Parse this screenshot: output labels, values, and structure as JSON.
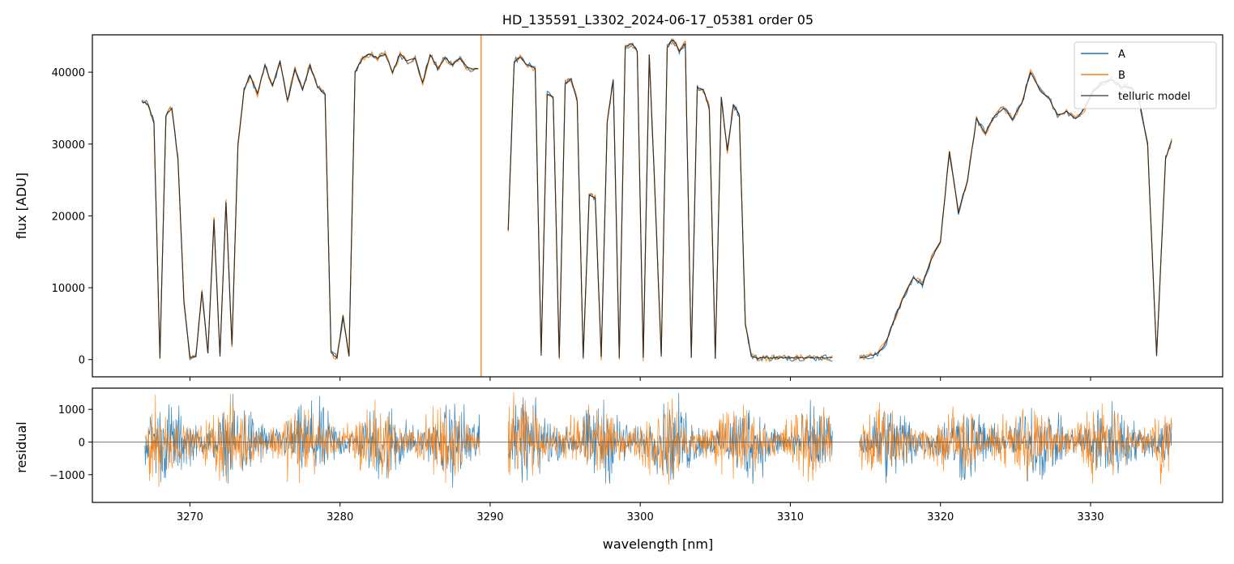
{
  "figure": {
    "title": "HD_135591_L3302_2024-06-17_05381  order 05"
  },
  "chart_data": [
    {
      "type": "line",
      "panel": "top",
      "xlabel": "",
      "ylabel": "flux [ADU]",
      "xlim": [
        3263.5,
        3338.8
      ],
      "ylim": [
        -2400,
        45200
      ],
      "yticks": [
        0,
        10000,
        20000,
        30000,
        40000
      ],
      "xticks": [
        3270,
        3280,
        3290,
        3300,
        3310,
        3320,
        3330
      ],
      "grid": false,
      "legend_position": "top-right",
      "legend": [
        "A",
        "B",
        "telluric model"
      ],
      "colors": {
        "A": "#1f77b4",
        "B": "#ff7f0e",
        "telluric model": "#000000"
      },
      "segments": [
        {
          "x": [
            3266.8,
            3267.2,
            3267.6,
            3268.0,
            3268.4,
            3268.8,
            3269.2,
            3269.6,
            3270.0,
            3270.4,
            3270.8,
            3271.2,
            3271.6,
            3272.0,
            3272.4,
            3272.8,
            3273.2,
            3273.6,
            3274.0,
            3274.5,
            3275.0,
            3275.5,
            3276.0,
            3276.5,
            3277.0,
            3277.5,
            3278.0,
            3278.5,
            3279.0,
            3279.4,
            3279.8,
            3280.2,
            3280.6,
            3281.0,
            3281.5,
            3282.0,
            3282.5,
            3283.0,
            3283.5,
            3284.0,
            3284.5,
            3285.0,
            3285.5,
            3286.0,
            3286.5,
            3287.0,
            3287.5,
            3288.0,
            3288.5,
            3289.2
          ],
          "y": [
            36000,
            35500,
            33000,
            200,
            34000,
            35000,
            28000,
            8000,
            300,
            400,
            9500,
            800,
            19500,
            500,
            22000,
            2000,
            30000,
            37500,
            39500,
            37000,
            41000,
            38000,
            41500,
            36000,
            40500,
            37500,
            41000,
            38000,
            37000,
            1000,
            200,
            6000,
            400,
            40000,
            42000,
            42500,
            42000,
            42500,
            40000,
            42500,
            41500,
            42000,
            38500,
            42500,
            40500,
            42000,
            41000,
            42000,
            40500,
            40500
          ]
        },
        {
          "x": [
            3291.2,
            3291.6,
            3292.0,
            3292.5,
            3293.0,
            3293.4,
            3293.8,
            3294.2,
            3294.6,
            3295.0,
            3295.4,
            3295.8,
            3296.2,
            3296.6,
            3297.0,
            3297.4,
            3297.8,
            3298.2,
            3298.6,
            3299.0,
            3299.4,
            3299.8,
            3300.2,
            3300.6,
            3301.0,
            3301.4,
            3301.8,
            3302.2,
            3302.6,
            3303.0,
            3303.4,
            3303.8,
            3304.2,
            3304.6,
            3305.0,
            3305.4,
            3305.8,
            3306.2,
            3306.6,
            3307.0,
            3307.4,
            3307.8,
            3308.2,
            3308.6,
            3309.0,
            3309.4,
            3309.8,
            3310.2,
            3310.6,
            3311.0,
            3311.4,
            3311.8,
            3312.2,
            3312.8
          ],
          "y": [
            18000,
            41500,
            42000,
            41000,
            40500,
            500,
            37000,
            36500,
            300,
            38500,
            39000,
            36000,
            200,
            23000,
            22500,
            300,
            33000,
            39000,
            300,
            43500,
            44000,
            43000,
            200,
            42500,
            22000,
            400,
            43500,
            44500,
            43000,
            44000,
            300,
            38000,
            37500,
            35000,
            200,
            36500,
            29000,
            35500,
            34000,
            5000,
            500,
            200,
            300,
            200,
            300,
            200,
            300,
            200,
            300,
            200,
            300,
            200,
            300,
            200
          ]
        },
        {
          "x": [
            3314.6,
            3315.2,
            3315.8,
            3316.4,
            3317.0,
            3317.6,
            3318.2,
            3318.8,
            3319.4,
            3320.0,
            3320.6,
            3321.2,
            3321.8,
            3322.4,
            3323.0,
            3323.6,
            3324.2,
            3324.8,
            3325.4,
            3326.0,
            3326.6,
            3327.2,
            3327.8,
            3328.4,
            3329.0,
            3329.6,
            3330.2,
            3330.8,
            3331.4,
            3332.0,
            3332.6,
            3333.2,
            3333.8,
            3334.4,
            3335.0,
            3335.4
          ],
          "y": [
            300,
            500,
            800,
            2500,
            6000,
            9000,
            11500,
            10500,
            14000,
            16500,
            29000,
            20500,
            25000,
            33500,
            31500,
            34000,
            35000,
            33500,
            35500,
            40000,
            37500,
            36500,
            34000,
            34500,
            33500,
            35000,
            37500,
            38500,
            39000,
            38000,
            38000,
            36500,
            30000,
            500,
            28000,
            30500
          ]
        }
      ]
    },
    {
      "type": "line",
      "panel": "bottom",
      "xlabel": "wavelength [nm]",
      "ylabel": "residual",
      "xlim": [
        3263.5,
        3338.8
      ],
      "ylim": [
        -1850,
        1650
      ],
      "yticks": [
        -1000,
        0,
        1000
      ],
      "xticks": [
        3270,
        3280,
        3290,
        3300,
        3310,
        3320,
        3330
      ],
      "zero_line": 0,
      "grid": false,
      "segments": [
        {
          "x0": 3267.0,
          "x1": 3289.3
        },
        {
          "x0": 3291.2,
          "x1": 3312.8
        },
        {
          "x0": 3314.6,
          "x1": 3335.4
        }
      ],
      "noise_amplitude": 500
    }
  ]
}
